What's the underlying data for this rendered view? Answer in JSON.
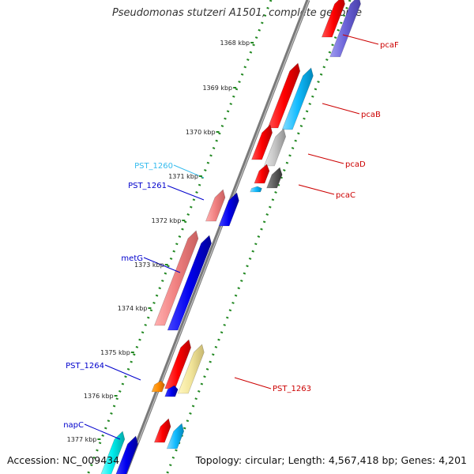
{
  "title": "Pseudomonas stutzeri A1501, complete genome",
  "accession": "Accession: NC_009434",
  "summary": "Topology: circular; Length: 4,567,418 bp; Genes: 4,201",
  "ticks": [
    "1368 kbp",
    "1369 kbp",
    "1370 kbp",
    "1371 kbp",
    "1372 kbp",
    "1373 kbp",
    "1374 kbp",
    "1375 kbp",
    "1376 kbp",
    "1377 kbp"
  ],
  "genes": [
    {
      "label": "pcaF",
      "color": "#cc0000"
    },
    {
      "label": "pcaB",
      "color": "#cc0000"
    },
    {
      "label": "pcaD",
      "color": "#cc0000"
    },
    {
      "label": "pcaC",
      "color": "#cc0000"
    },
    {
      "label": "PST_1260",
      "color": "#33bbee"
    },
    {
      "label": "PST_1261",
      "color": "#0000cc"
    },
    {
      "label": "metG",
      "color": "#0000cc"
    },
    {
      "label": "PST_1264",
      "color": "#0000cc"
    },
    {
      "label": "PST_1263",
      "color": "#cc0000"
    },
    {
      "label": "napC",
      "color": "#0000cc"
    }
  ]
}
